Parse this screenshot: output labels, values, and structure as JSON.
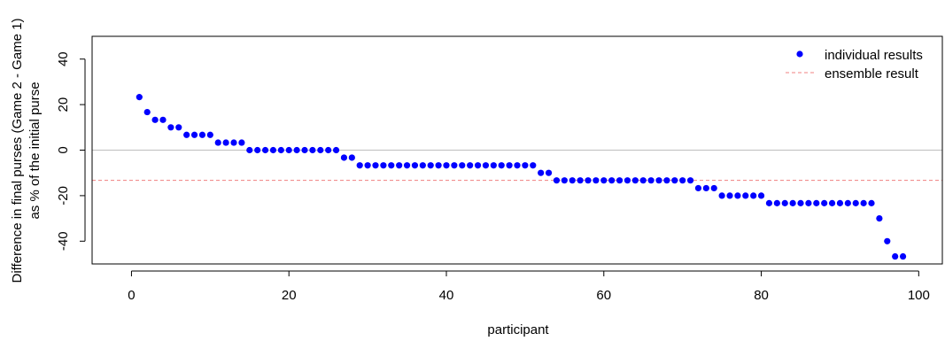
{
  "chart_data": {
    "type": "scatter",
    "xlabel": "participant",
    "ylabel_line1": "Difference in final purses (Game 2 - Game 1)",
    "ylabel_line2": "as % of the initial purse",
    "xlim": [
      -5,
      103
    ],
    "ylim": [
      -50,
      50
    ],
    "xticks": [
      0,
      20,
      40,
      60,
      80,
      100
    ],
    "yticks": [
      -40,
      -20,
      0,
      20,
      40
    ],
    "grid": false,
    "legend_position": "top-right",
    "zero_line": 0,
    "colors": {
      "points": "#0000ff",
      "ensemble": "#f08080",
      "zero_line": "#bebebe"
    },
    "legend": [
      {
        "label": "individual results",
        "marker": "point"
      },
      {
        "label": "ensemble result",
        "marker": "dashed-line"
      }
    ],
    "ensemble_result": -13.3,
    "series": [
      {
        "name": "individual results",
        "x": [
          1,
          2,
          3,
          4,
          5,
          6,
          7,
          8,
          9,
          10,
          11,
          12,
          13,
          14,
          15,
          16,
          17,
          18,
          19,
          20,
          21,
          22,
          23,
          24,
          25,
          26,
          27,
          28,
          29,
          30,
          31,
          32,
          33,
          34,
          35,
          36,
          37,
          38,
          39,
          40,
          41,
          42,
          43,
          44,
          45,
          46,
          47,
          48,
          49,
          50,
          51,
          52,
          53,
          54,
          55,
          56,
          57,
          58,
          59,
          60,
          61,
          62,
          63,
          64,
          65,
          66,
          67,
          68,
          69,
          70,
          71,
          72,
          73,
          74,
          75,
          76,
          77,
          78,
          79,
          80,
          81,
          82,
          83,
          84,
          85,
          86,
          87,
          88,
          89,
          90,
          91,
          92,
          93,
          94,
          95,
          96,
          97,
          98
        ],
        "y": [
          23.3,
          16.7,
          13.3,
          13.3,
          10,
          10,
          6.7,
          6.7,
          6.7,
          6.7,
          3.3,
          3.3,
          3.3,
          3.3,
          0,
          0,
          0,
          0,
          0,
          0,
          0,
          0,
          0,
          0,
          0,
          0,
          -3.3,
          -3.3,
          -6.7,
          -6.7,
          -6.7,
          -6.7,
          -6.7,
          -6.7,
          -6.7,
          -6.7,
          -6.7,
          -6.7,
          -6.7,
          -6.7,
          -6.7,
          -6.7,
          -6.7,
          -6.7,
          -6.7,
          -6.7,
          -6.7,
          -6.7,
          -6.7,
          -6.7,
          -6.7,
          -10,
          -10,
          -13.3,
          -13.3,
          -13.3,
          -13.3,
          -13.3,
          -13.3,
          -13.3,
          -13.3,
          -13.3,
          -13.3,
          -13.3,
          -13.3,
          -13.3,
          -13.3,
          -13.3,
          -13.3,
          -13.3,
          -13.3,
          -16.7,
          -16.7,
          -16.7,
          -20,
          -20,
          -20,
          -20,
          -20,
          -20,
          -23.3,
          -23.3,
          -23.3,
          -23.3,
          -23.3,
          -23.3,
          -23.3,
          -23.3,
          -23.3,
          -23.3,
          -23.3,
          -23.3,
          -23.3,
          -23.3,
          -30,
          -40,
          -46.7,
          -46.7
        ]
      }
    ]
  }
}
